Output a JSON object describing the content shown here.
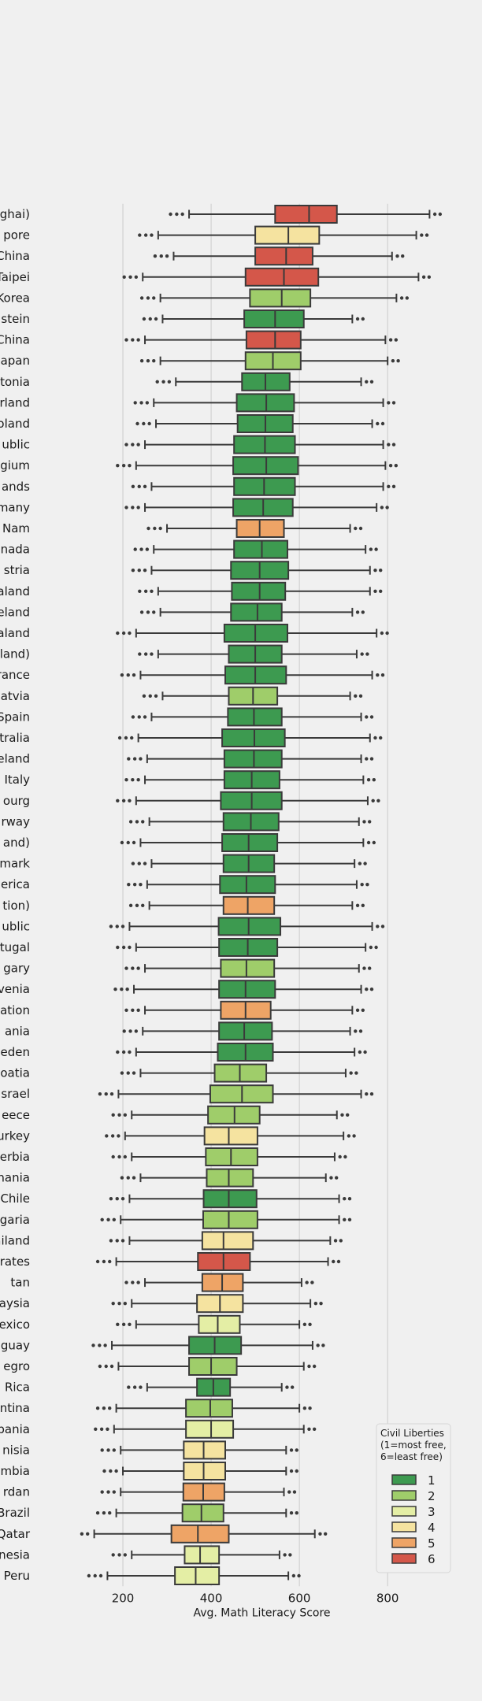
{
  "chart_data": {
    "type": "boxplot",
    "orientation": "horizontal",
    "xlabel": "Avg. Math Literacy Score",
    "xticks": [
      200,
      400,
      600,
      800
    ],
    "xlim": [
      100,
      930
    ],
    "grid": true,
    "legend": {
      "title_lines": [
        "Civil Liberties",
        "(1=most free,",
        "6=least free)"
      ],
      "entries": [
        {
          "label": "1",
          "color": "#3d9a50"
        },
        {
          "label": "2",
          "color": "#9fcd6a"
        },
        {
          "label": "3",
          "color": "#e4eea5"
        },
        {
          "label": "4",
          "color": "#f5e3a0"
        },
        {
          "label": "5",
          "color": "#eea466"
        },
        {
          "label": "6",
          "color": "#d4574a"
        }
      ],
      "placement": "bottom-right"
    },
    "series": [
      {
        "label": "ghai)",
        "cl": 6,
        "q1": 545,
        "med": 622,
        "q3": 685,
        "wlo": 350,
        "whi": 895
      },
      {
        "label": "pore",
        "cl": 4,
        "q1": 500,
        "med": 575,
        "q3": 645,
        "wlo": 280,
        "whi": 865
      },
      {
        "label": "China",
        "cl": 6,
        "q1": 500,
        "med": 570,
        "q3": 630,
        "wlo": 315,
        "whi": 810
      },
      {
        "label": "Taipei",
        "cl": 6,
        "q1": 478,
        "med": 565,
        "q3": 643,
        "wlo": 245,
        "whi": 870
      },
      {
        "label": "Korea",
        "cl": 2,
        "q1": 488,
        "med": 560,
        "q3": 625,
        "wlo": 285,
        "whi": 820
      },
      {
        "label": "stein",
        "cl": 1,
        "q1": 475,
        "med": 545,
        "q3": 610,
        "wlo": 290,
        "whi": 720
      },
      {
        "label": "China",
        "cl": 6,
        "q1": 480,
        "med": 545,
        "q3": 603,
        "wlo": 250,
        "whi": 795
      },
      {
        "label": "apan",
        "cl": 2,
        "q1": 478,
        "med": 540,
        "q3": 603,
        "wlo": 285,
        "whi": 800
      },
      {
        "label": "tonia",
        "cl": 1,
        "q1": 470,
        "med": 523,
        "q3": 578,
        "wlo": 320,
        "whi": 740
      },
      {
        "label": "rland",
        "cl": 1,
        "q1": 458,
        "med": 525,
        "q3": 588,
        "wlo": 270,
        "whi": 790
      },
      {
        "label": "oland",
        "cl": 1,
        "q1": 460,
        "med": 523,
        "q3": 585,
        "wlo": 275,
        "whi": 765
      },
      {
        "label": "ublic",
        "cl": 1,
        "q1": 452,
        "med": 522,
        "q3": 590,
        "wlo": 250,
        "whi": 790
      },
      {
        "label": "gium",
        "cl": 1,
        "q1": 450,
        "med": 525,
        "q3": 597,
        "wlo": 230,
        "whi": 795
      },
      {
        "label": "ands",
        "cl": 1,
        "q1": 452,
        "med": 520,
        "q3": 590,
        "wlo": 265,
        "whi": 790
      },
      {
        "label": "many",
        "cl": 1,
        "q1": 450,
        "med": 518,
        "q3": 585,
        "wlo": 250,
        "whi": 775
      },
      {
        "label": "Nam",
        "cl": 5,
        "q1": 458,
        "med": 510,
        "q3": 565,
        "wlo": 300,
        "whi": 715
      },
      {
        "label": "nada",
        "cl": 1,
        "q1": 452,
        "med": 515,
        "q3": 573,
        "wlo": 270,
        "whi": 750
      },
      {
        "label": "stria",
        "cl": 1,
        "q1": 445,
        "med": 510,
        "q3": 575,
        "wlo": 265,
        "whi": 760
      },
      {
        "label": "aland",
        "cl": 1,
        "q1": 447,
        "med": 510,
        "q3": 568,
        "wlo": 280,
        "whi": 760
      },
      {
        "label": "eland",
        "cl": 1,
        "q1": 445,
        "med": 505,
        "q3": 560,
        "wlo": 285,
        "whi": 720
      },
      {
        "label": "aland",
        "cl": 1,
        "q1": 430,
        "med": 500,
        "q3": 573,
        "wlo": 230,
        "whi": 775
      },
      {
        "label": "land)",
        "cl": 1,
        "q1": 440,
        "med": 500,
        "q3": 560,
        "wlo": 280,
        "whi": 730
      },
      {
        "label": "rance",
        "cl": 1,
        "q1": 432,
        "med": 500,
        "q3": 570,
        "wlo": 240,
        "whi": 765
      },
      {
        "label": "atvia",
        "cl": 2,
        "q1": 440,
        "med": 495,
        "q3": 550,
        "wlo": 290,
        "whi": 715
      },
      {
        "label": "Spain",
        "cl": 1,
        "q1": 438,
        "med": 497,
        "q3": 560,
        "wlo": 265,
        "whi": 740
      },
      {
        "label": "tralia",
        "cl": 1,
        "q1": 425,
        "med": 498,
        "q3": 567,
        "wlo": 235,
        "whi": 760
      },
      {
        "label": "eland",
        "cl": 1,
        "q1": 430,
        "med": 497,
        "q3": 560,
        "wlo": 255,
        "whi": 740
      },
      {
        "label": "Italy",
        "cl": 1,
        "q1": 430,
        "med": 492,
        "q3": 555,
        "wlo": 250,
        "whi": 745
      },
      {
        "label": "ourg",
        "cl": 1,
        "q1": 422,
        "med": 492,
        "q3": 560,
        "wlo": 230,
        "whi": 755
      },
      {
        "label": "rway",
        "cl": 1,
        "q1": 428,
        "med": 490,
        "q3": 553,
        "wlo": 260,
        "whi": 735
      },
      {
        "label": "and)",
        "cl": 1,
        "q1": 425,
        "med": 485,
        "q3": 550,
        "wlo": 240,
        "whi": 745
      },
      {
        "label": "mark",
        "cl": 1,
        "q1": 428,
        "med": 485,
        "q3": 543,
        "wlo": 265,
        "whi": 725
      },
      {
        "label": "erica",
        "cl": 1,
        "q1": 420,
        "med": 480,
        "q3": 545,
        "wlo": 255,
        "whi": 730
      },
      {
        "label": "tion)",
        "cl": 5,
        "q1": 428,
        "med": 483,
        "q3": 543,
        "wlo": 260,
        "whi": 720
      },
      {
        "label": "ublic",
        "cl": 1,
        "q1": 417,
        "med": 485,
        "q3": 557,
        "wlo": 215,
        "whi": 765
      },
      {
        "label": "tugal",
        "cl": 1,
        "q1": 418,
        "med": 483,
        "q3": 550,
        "wlo": 230,
        "whi": 750
      },
      {
        "label": "gary",
        "cl": 2,
        "q1": 422,
        "med": 480,
        "q3": 543,
        "wlo": 250,
        "whi": 735
      },
      {
        "label": "venia",
        "cl": 1,
        "q1": 418,
        "med": 478,
        "q3": 545,
        "wlo": 225,
        "whi": 740
      },
      {
        "label": "ation",
        "cl": 5,
        "q1": 422,
        "med": 478,
        "q3": 535,
        "wlo": 250,
        "whi": 720
      },
      {
        "label": "ania",
        "cl": 1,
        "q1": 418,
        "med": 475,
        "q3": 538,
        "wlo": 245,
        "whi": 715
      },
      {
        "label": "eden",
        "cl": 1,
        "q1": 415,
        "med": 478,
        "q3": 540,
        "wlo": 230,
        "whi": 725
      },
      {
        "label": "oatia",
        "cl": 2,
        "q1": 408,
        "med": 465,
        "q3": 525,
        "wlo": 240,
        "whi": 705
      },
      {
        "label": "srael",
        "cl": 2,
        "q1": 398,
        "med": 470,
        "q3": 540,
        "wlo": 190,
        "whi": 740
      },
      {
        "label": "eece",
        "cl": 2,
        "q1": 393,
        "med": 453,
        "q3": 510,
        "wlo": 220,
        "whi": 685
      },
      {
        "label": "urkey",
        "cl": 4,
        "q1": 385,
        "med": 440,
        "q3": 505,
        "wlo": 205,
        "whi": 700
      },
      {
        "label": "erbia",
        "cl": 2,
        "q1": 388,
        "med": 445,
        "q3": 505,
        "wlo": 220,
        "whi": 680
      },
      {
        "label": "nania",
        "cl": 2,
        "q1": 390,
        "med": 440,
        "q3": 495,
        "wlo": 240,
        "whi": 660
      },
      {
        "label": "Chile",
        "cl": 1,
        "q1": 383,
        "med": 440,
        "q3": 503,
        "wlo": 215,
        "whi": 690
      },
      {
        "label": "garia",
        "cl": 2,
        "q1": 382,
        "med": 440,
        "q3": 505,
        "wlo": 195,
        "whi": 690
      },
      {
        "label": "ailand",
        "cl": 4,
        "q1": 380,
        "med": 428,
        "q3": 495,
        "wlo": 215,
        "whi": 670
      },
      {
        "label": "rates",
        "cl": 6,
        "q1": 370,
        "med": 428,
        "q3": 488,
        "wlo": 185,
        "whi": 665
      },
      {
        "label": "tan",
        "cl": 5,
        "q1": 380,
        "med": 425,
        "q3": 472,
        "wlo": 250,
        "whi": 605
      },
      {
        "label": "aysia",
        "cl": 4,
        "q1": 368,
        "med": 420,
        "q3": 472,
        "wlo": 220,
        "whi": 625
      },
      {
        "label": "exico",
        "cl": 3,
        "q1": 372,
        "med": 415,
        "q3": 465,
        "wlo": 230,
        "whi": 600
      },
      {
        "label": "guay",
        "cl": 1,
        "q1": 350,
        "med": 408,
        "q3": 468,
        "wlo": 175,
        "whi": 630
      },
      {
        "label": "egro",
        "cl": 2,
        "q1": 350,
        "med": 400,
        "q3": 458,
        "wlo": 190,
        "whi": 610
      },
      {
        "label": "Rica",
        "cl": 1,
        "q1": 368,
        "med": 405,
        "q3": 443,
        "wlo": 255,
        "whi": 560
      },
      {
        "label": "ntina",
        "cl": 2,
        "q1": 343,
        "med": 398,
        "q3": 448,
        "wlo": 185,
        "whi": 600
      },
      {
        "label": "bania",
        "cl": 3,
        "q1": 343,
        "med": 400,
        "q3": 450,
        "wlo": 180,
        "whi": 610
      },
      {
        "label": "nisia",
        "cl": 4,
        "q1": 338,
        "med": 383,
        "q3": 432,
        "wlo": 195,
        "whi": 570
      },
      {
        "label": "mbia",
        "cl": 4,
        "q1": 338,
        "med": 383,
        "q3": 432,
        "wlo": 200,
        "whi": 570
      },
      {
        "label": "rdan",
        "cl": 5,
        "q1": 337,
        "med": 382,
        "q3": 430,
        "wlo": 195,
        "whi": 565
      },
      {
        "label": "Brazil",
        "cl": 2,
        "q1": 335,
        "med": 378,
        "q3": 428,
        "wlo": 185,
        "whi": 570
      },
      {
        "label": "Qatar",
        "cl": 5,
        "q1": 310,
        "med": 370,
        "q3": 440,
        "wlo": 135,
        "whi": 635
      },
      {
        "label": "nesia",
        "cl": 3,
        "q1": 340,
        "med": 375,
        "q3": 418,
        "wlo": 220,
        "whi": 555
      },
      {
        "label": "Peru",
        "cl": 3,
        "q1": 318,
        "med": 365,
        "q3": 418,
        "wlo": 165,
        "whi": 575
      }
    ]
  }
}
